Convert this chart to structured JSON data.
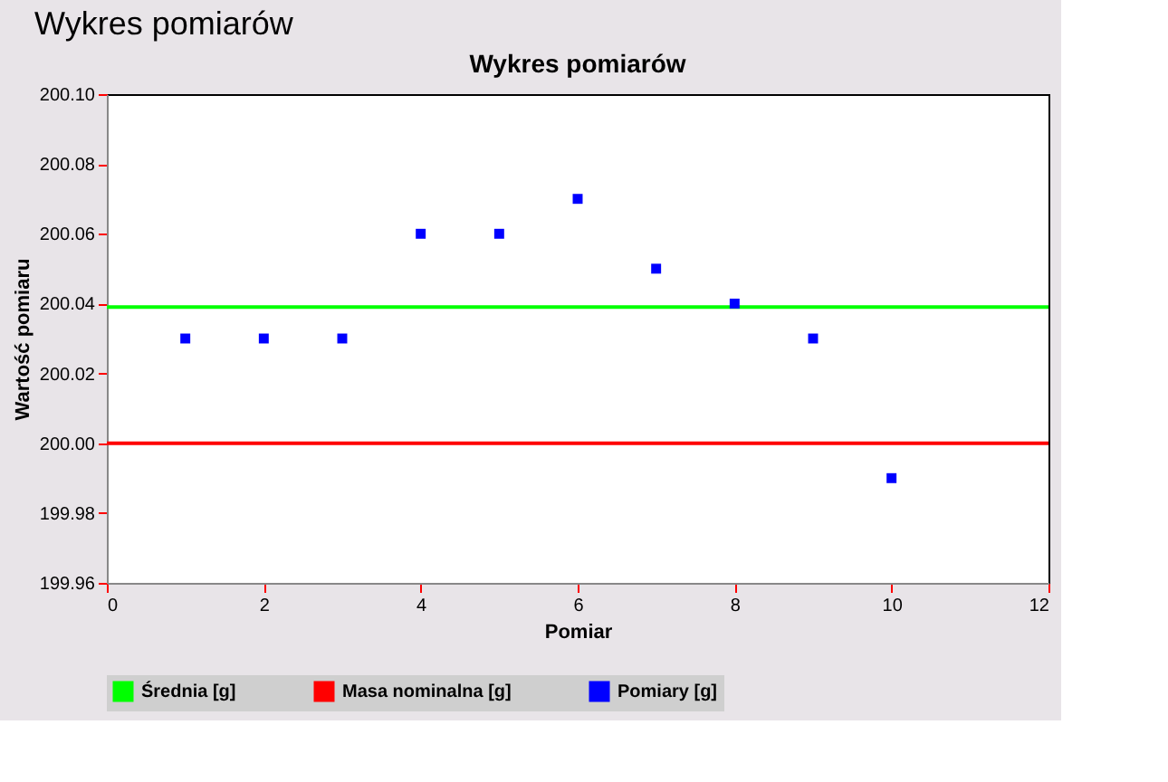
{
  "chart_data": {
    "type": "scatter",
    "title": "Wykres pomiarów",
    "xlabel": "Pomiar",
    "ylabel": "Wartość pomiaru",
    "annotations": [
      "Wykres pomiarów"
    ],
    "series": [
      {
        "name": "Średnia [g]",
        "type": "line",
        "color": "#00ff00",
        "x": [
          0,
          12
        ],
        "values": [
          200.039,
          200.039
        ]
      },
      {
        "name": "Masa nominalna [g]",
        "type": "line",
        "color": "#ff0000",
        "x": [
          0,
          12
        ],
        "values": [
          200.0,
          200.0
        ]
      },
      {
        "name": "Pomiary [g]",
        "color": "#0000ff",
        "marker": "square",
        "x": [
          1,
          2,
          3,
          4,
          5,
          6,
          7,
          8,
          9,
          10
        ],
        "values": [
          200.03,
          200.03,
          200.03,
          200.06,
          200.06,
          200.07,
          200.05,
          200.04,
          200.03,
          199.99
        ]
      }
    ],
    "xlim": [
      0,
      12
    ],
    "xticks": [
      0,
      2,
      4,
      6,
      8,
      10,
      12
    ],
    "ylim": [
      199.96,
      200.1
    ],
    "yticks": [
      {
        "value": 199.96,
        "label": "199.96"
      },
      {
        "value": 199.98,
        "label": "199.98"
      },
      {
        "value": 200.0,
        "label": "200.00"
      },
      {
        "value": 200.02,
        "label": "200.02"
      },
      {
        "value": 200.04,
        "label": "200.04"
      },
      {
        "value": 200.06,
        "label": "200.06"
      },
      {
        "value": 200.08,
        "label": "200.08"
      },
      {
        "value": 200.1,
        "label": "200.10"
      }
    ],
    "grid": false,
    "legend": "bottom",
    "line_style": "solid"
  }
}
